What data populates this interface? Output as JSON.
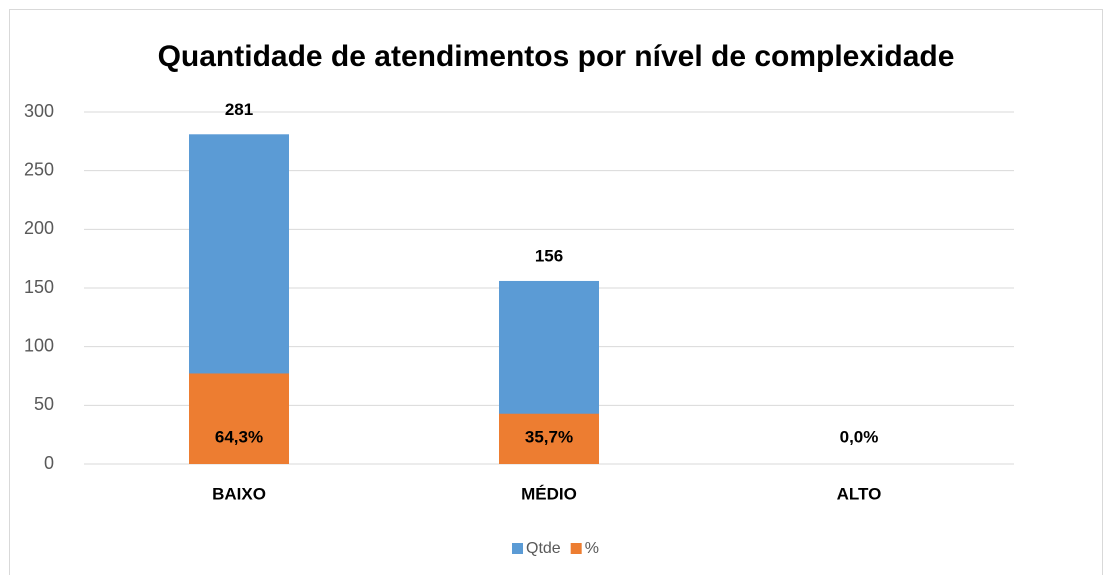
{
  "chart_data": {
    "type": "bar",
    "title": "Quantidade de atendimentos por nível de complexidade",
    "categories": [
      "BAIXO",
      "MÉDIO",
      "ALTO"
    ],
    "series": [
      {
        "name": "Qtde",
        "color": "#5b9bd5",
        "values": [
          281,
          156,
          0
        ],
        "value_labels": [
          "281",
          "156",
          null
        ]
      },
      {
        "name": "%",
        "color": "#ed7d31",
        "axis": "y2",
        "values": [
          64.3,
          35.7,
          0
        ],
        "value_labels": [
          "64,3%",
          "35,7%",
          "0,0%"
        ]
      }
    ],
    "ylim": [
      0,
      300
    ],
    "yticks": [
      0,
      50,
      100,
      150,
      200,
      250,
      300
    ],
    "y2lim": [
      0,
      250
    ],
    "grid": true,
    "legend": "bottom"
  }
}
